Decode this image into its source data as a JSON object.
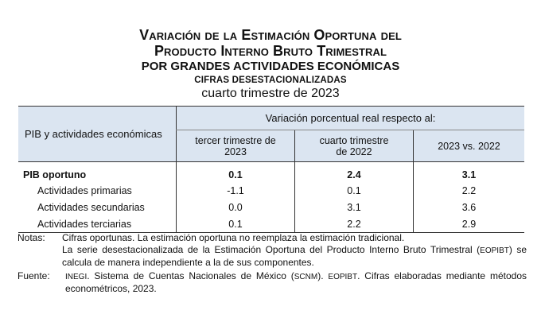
{
  "title": {
    "line1": "Variación de la Estimación Oportuna del",
    "line2": "Producto Interno Bruto Trimestral",
    "line3": "por grandes actividades económicas",
    "line4": "CIFRAS DESESTACIONALIZADAS",
    "line5": "cuarto trimestre de 2023"
  },
  "table": {
    "row_header": "PIB y actividades económicas",
    "span_header": "Variación porcentual real respecto al:",
    "columns": [
      "tercer trimestre de\n2023",
      "cuarto trimestre\nde 2022",
      "2023 vs. 2022"
    ],
    "rows": [
      {
        "label": "PIB oportuno",
        "values": [
          "0.1",
          "2.4",
          "3.1"
        ]
      },
      {
        "label": "Actividades primarias",
        "values": [
          "-1.1",
          "0.1",
          "2.2"
        ]
      },
      {
        "label": "Actividades secundarias",
        "values": [
          "0.0",
          "3.1",
          "3.6"
        ]
      },
      {
        "label": "Actividades terciarias",
        "values": [
          "0.1",
          "2.2",
          "2.9"
        ]
      }
    ]
  },
  "notes": {
    "label": "Notas:",
    "line1": "Cifras oportunas. La estimación oportuna no reemplaza la estimación tradicional.",
    "line2a": "La serie desestacionalizada de la Estimación Oportuna del Producto Interno Bruto Trimestral (",
    "line2abbr": "EOPIBT",
    "line2b": ") se calcula de manera independiente a la de sus componentes."
  },
  "source": {
    "label": "Fuente:",
    "abbr1": "INEGI",
    "text1": ". Sistema de Cuentas Nacionales de México (",
    "abbr2": "SCNM",
    "text2": "). ",
    "abbr3": "EOPIBT",
    "text3": ". Cifras elaboradas mediante métodos econométricos, 2023."
  }
}
